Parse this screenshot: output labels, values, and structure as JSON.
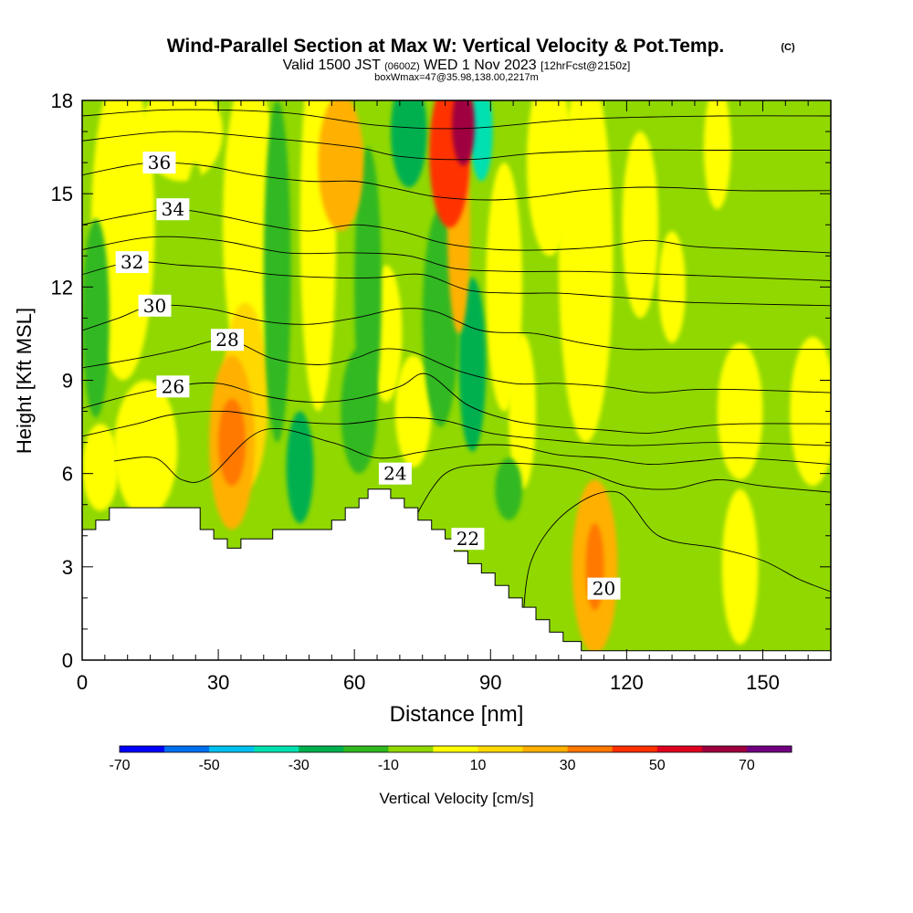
{
  "header": {
    "title": "Wind-Parallel Section at Max W: Vertical Velocity & Pot.Temp.",
    "copyright": "(C)",
    "valid_prefix": "Valid 1500 JST",
    "valid_utc": "(0600Z)",
    "valid_date": "WED 1 Nov 2023",
    "forecast": "[12hrFcst@2150z]",
    "box_info": "boxWmax=47@35.98,138.00,2217m"
  },
  "chart_data": {
    "type": "heatmap",
    "xlabel": "Distance [nm]",
    "ylabel": "Height [Kft MSL]",
    "xlim": [
      0,
      165
    ],
    "ylim": [
      0,
      18
    ],
    "xticks": [
      0,
      30,
      60,
      90,
      120,
      150
    ],
    "yticks": [
      0,
      3,
      6,
      9,
      12,
      15,
      18
    ],
    "colorbar": {
      "label": "Vertical Velocity [cm/s]",
      "range": [
        -70,
        80
      ],
      "step": 10,
      "tick_values": [
        -70,
        -50,
        -30,
        -10,
        10,
        30,
        50,
        70
      ],
      "colors": [
        "#0000ff",
        "#0070f0",
        "#00c0f0",
        "#00e0b0",
        "#00b050",
        "#30b820",
        "#90d800",
        "#ffff00",
        "#ffd800",
        "#ffb000",
        "#ff7800",
        "#ff3000",
        "#e00020",
        "#a00040",
        "#700080"
      ]
    },
    "terrain_kft": [
      [
        0,
        4.2
      ],
      [
        3,
        4.2
      ],
      [
        3,
        4.5
      ],
      [
        6,
        4.5
      ],
      [
        6,
        4.9
      ],
      [
        26,
        4.9
      ],
      [
        26,
        4.2
      ],
      [
        29,
        4.2
      ],
      [
        29,
        3.9
      ],
      [
        32,
        3.9
      ],
      [
        32,
        3.6
      ],
      [
        35,
        3.6
      ],
      [
        35,
        3.9
      ],
      [
        42,
        3.9
      ],
      [
        42,
        4.2
      ],
      [
        55,
        4.2
      ],
      [
        55,
        4.5
      ],
      [
        58,
        4.5
      ],
      [
        58,
        4.9
      ],
      [
        61,
        4.9
      ],
      [
        61,
        5.2
      ],
      [
        63,
        5.2
      ],
      [
        63,
        5.5
      ],
      [
        68,
        5.5
      ],
      [
        68,
        5.2
      ],
      [
        71,
        5.2
      ],
      [
        71,
        4.9
      ],
      [
        74,
        4.9
      ],
      [
        74,
        4.5
      ],
      [
        77,
        4.5
      ],
      [
        77,
        4.2
      ],
      [
        80,
        4.2
      ],
      [
        80,
        3.9
      ],
      [
        82,
        3.9
      ],
      [
        82,
        3.5
      ],
      [
        85,
        3.5
      ],
      [
        85,
        3.1
      ],
      [
        88,
        3.1
      ],
      [
        88,
        2.8
      ],
      [
        91,
        2.8
      ],
      [
        91,
        2.4
      ],
      [
        94,
        2.4
      ],
      [
        94,
        2.0
      ],
      [
        97,
        2.0
      ],
      [
        97,
        1.7
      ],
      [
        100,
        1.7
      ],
      [
        100,
        1.3
      ],
      [
        103,
        1.3
      ],
      [
        103,
        0.9
      ],
      [
        106,
        0.9
      ],
      [
        106,
        0.6
      ],
      [
        110,
        0.6
      ],
      [
        110,
        0.3
      ],
      [
        127,
        0.3
      ],
      [
        165,
        0.3
      ]
    ],
    "wind_cells": [
      {
        "x": 3,
        "y": 11,
        "rx": 3,
        "ry": 3.2,
        "w": -12
      },
      {
        "x": 4,
        "y": 6.2,
        "rx": 4,
        "ry": 1.4,
        "w": 5
      },
      {
        "x": 9,
        "y": 14,
        "rx": 7,
        "ry": 5,
        "w": 8
      },
      {
        "x": 14,
        "y": 6.8,
        "rx": 7,
        "ry": 2.2,
        "w": 8
      },
      {
        "x": 22,
        "y": 17,
        "rx": 9,
        "ry": 1.6,
        "w": 5
      },
      {
        "x": 25,
        "y": 12,
        "rx": 3,
        "ry": 4,
        "w": -8
      },
      {
        "x": 33,
        "y": 7,
        "rx": 5,
        "ry": 2.8,
        "w": 24
      },
      {
        "x": 33,
        "y": 7,
        "rx": 3,
        "ry": 1.4,
        "w": 30
      },
      {
        "x": 36,
        "y": 8.5,
        "rx": 5,
        "ry": 3,
        "w": 12
      },
      {
        "x": 37,
        "y": 14,
        "rx": 6,
        "ry": 5,
        "w": 8
      },
      {
        "x": 43,
        "y": 12.5,
        "rx": 3,
        "ry": 5.5,
        "w": -12
      },
      {
        "x": 48,
        "y": 6.2,
        "rx": 3,
        "ry": 1.8,
        "w": -22
      },
      {
        "x": 52,
        "y": 14,
        "rx": 4,
        "ry": 6,
        "w": 5
      },
      {
        "x": 57,
        "y": 16,
        "rx": 5,
        "ry": 2.2,
        "w": 20
      },
      {
        "x": 63,
        "y": 12,
        "rx": 3,
        "ry": 4.5,
        "w": -15
      },
      {
        "x": 61,
        "y": 8,
        "rx": 4,
        "ry": 2,
        "w": -12
      },
      {
        "x": 67,
        "y": 10.5,
        "rx": 3.5,
        "ry": 2.2,
        "w": 8
      },
      {
        "x": 72,
        "y": 17,
        "rx": 4,
        "ry": 1.8,
        "w": -22
      },
      {
        "x": 73,
        "y": 8,
        "rx": 4,
        "ry": 1.8,
        "w": 5
      },
      {
        "x": 79,
        "y": 11,
        "rx": 4,
        "ry": 3.5,
        "w": -18
      },
      {
        "x": 81,
        "y": 16.3,
        "rx": 4.5,
        "ry": 2.4,
        "w": 40
      },
      {
        "x": 83,
        "y": 14,
        "rx": 2.5,
        "ry": 3.5,
        "w": 28
      },
      {
        "x": 84,
        "y": 17.2,
        "rx": 2.5,
        "ry": 1.3,
        "w": 62
      },
      {
        "x": 86,
        "y": 9.5,
        "rx": 3,
        "ry": 2.8,
        "w": -25
      },
      {
        "x": 88,
        "y": 17,
        "rx": 2.5,
        "ry": 1.6,
        "w": -40
      },
      {
        "x": 93,
        "y": 12,
        "rx": 4,
        "ry": 4,
        "w": 8
      },
      {
        "x": 97,
        "y": 8,
        "rx": 3,
        "ry": 2.5,
        "w": 5
      },
      {
        "x": 94,
        "y": 5.5,
        "rx": 3,
        "ry": 1,
        "w": -12
      },
      {
        "x": 103,
        "y": 16,
        "rx": 5,
        "ry": 3,
        "w": 5
      },
      {
        "x": 111,
        "y": 13,
        "rx": 6,
        "ry": 6,
        "w": 8
      },
      {
        "x": 113,
        "y": 3,
        "rx": 5,
        "ry": 2.8,
        "w": 24
      },
      {
        "x": 113,
        "y": 3,
        "rx": 2,
        "ry": 1.4,
        "w": 30
      },
      {
        "x": 123,
        "y": 14,
        "rx": 4,
        "ry": 3,
        "w": 5
      },
      {
        "x": 130,
        "y": 12,
        "rx": 3,
        "ry": 1.8,
        "w": 5
      },
      {
        "x": 140,
        "y": 16.5,
        "rx": 3,
        "ry": 2,
        "w": 5
      },
      {
        "x": 145,
        "y": 8,
        "rx": 5,
        "ry": 2.2,
        "w": 5
      },
      {
        "x": 161,
        "y": 8,
        "rx": 5,
        "ry": 2.4,
        "w": 5
      },
      {
        "x": 145,
        "y": 3,
        "rx": 4,
        "ry": 2.5,
        "w": 5
      }
    ],
    "isentropes": [
      {
        "theta": 20,
        "label_at": [
          115,
          2.3
        ],
        "points": [
          [
            97,
            0.9
          ],
          [
            99,
            3.2
          ],
          [
            107,
            4.8
          ],
          [
            118,
            5.4
          ],
          [
            127,
            4.0
          ],
          [
            140,
            3.6
          ],
          [
            150,
            3.2
          ],
          [
            158,
            2.6
          ],
          [
            165,
            2.2
          ]
        ]
      },
      {
        "theta": 22,
        "label_at": [
          85,
          3.9
        ],
        "points": [
          [
            73,
            4.5
          ],
          [
            80,
            6.0
          ],
          [
            90,
            6.3
          ],
          [
            100,
            6.3
          ],
          [
            110,
            6.1
          ],
          [
            120,
            5.6
          ],
          [
            130,
            5.5
          ],
          [
            140,
            5.8
          ],
          [
            150,
            5.6
          ],
          [
            165,
            5.4
          ]
        ]
      },
      {
        "theta": 24,
        "label_at": [
          69,
          6.0
        ],
        "points": [
          [
            7,
            6.4
          ],
          [
            16,
            6.5
          ],
          [
            22,
            5.8
          ],
          [
            28,
            5.9
          ],
          [
            40,
            7.4
          ],
          [
            55,
            7.0
          ],
          [
            65,
            6.5
          ],
          [
            75,
            6.7
          ],
          [
            85,
            6.9
          ],
          [
            95,
            6.9
          ],
          [
            105,
            6.6
          ],
          [
            115,
            6.5
          ],
          [
            125,
            6.3
          ],
          [
            135,
            6.4
          ],
          [
            145,
            6.5
          ],
          [
            165,
            6.3
          ]
        ]
      },
      {
        "theta": 26,
        "label_at": [
          20,
          8.8
        ],
        "points": [
          [
            0,
            8.1
          ],
          [
            10,
            8.5
          ],
          [
            20,
            8.8
          ],
          [
            30,
            8.9
          ],
          [
            40,
            8.5
          ],
          [
            50,
            8.3
          ],
          [
            60,
            8.4
          ],
          [
            70,
            8.8
          ],
          [
            76,
            9.2
          ],
          [
            85,
            8.2
          ],
          [
            95,
            7.7
          ],
          [
            105,
            7.5
          ],
          [
            115,
            7.4
          ],
          [
            125,
            7.3
          ],
          [
            135,
            7.5
          ],
          [
            145,
            7.6
          ],
          [
            165,
            7.6
          ]
        ]
      },
      {
        "theta": 28,
        "label_at": [
          32,
          10.3
        ],
        "points": [
          [
            0,
            9.4
          ],
          [
            12,
            9.7
          ],
          [
            22,
            10.0
          ],
          [
            32,
            10.3
          ],
          [
            42,
            9.7
          ],
          [
            52,
            9.5
          ],
          [
            60,
            9.7
          ],
          [
            66,
            10.0
          ],
          [
            73,
            9.9
          ],
          [
            83,
            9.3
          ],
          [
            95,
            8.9
          ],
          [
            105,
            8.9
          ],
          [
            115,
            8.8
          ],
          [
            125,
            8.6
          ],
          [
            135,
            8.7
          ],
          [
            145,
            8.7
          ],
          [
            165,
            8.6
          ]
        ]
      },
      {
        "theta": 30,
        "label_at": [
          16,
          11.4
        ],
        "points": [
          [
            0,
            10.6
          ],
          [
            8,
            11.0
          ],
          [
            16,
            11.4
          ],
          [
            28,
            11.3
          ],
          [
            40,
            10.9
          ],
          [
            50,
            10.8
          ],
          [
            60,
            11.0
          ],
          [
            70,
            11.3
          ],
          [
            78,
            11.2
          ],
          [
            88,
            10.6
          ],
          [
            100,
            10.5
          ],
          [
            110,
            10.2
          ],
          [
            120,
            10.0
          ],
          [
            130,
            10.0
          ],
          [
            145,
            10.0
          ],
          [
            165,
            10.0
          ]
        ]
      },
      {
        "theta": 32,
        "label_at": [
          11,
          12.8
        ],
        "points": [
          [
            0,
            12.4
          ],
          [
            11,
            12.8
          ],
          [
            22,
            12.7
          ],
          [
            32,
            12.6
          ],
          [
            42,
            12.4
          ],
          [
            55,
            12.3
          ],
          [
            65,
            12.3
          ],
          [
            75,
            12.4
          ],
          [
            85,
            11.9
          ],
          [
            95,
            11.8
          ],
          [
            105,
            11.8
          ],
          [
            115,
            11.7
          ],
          [
            125,
            11.6
          ],
          [
            135,
            11.5
          ],
          [
            165,
            11.4
          ]
        ]
      },
      {
        "theta": 34,
        "label_at": [
          20,
          14.5
        ],
        "points": [
          [
            0,
            14.0
          ],
          [
            10,
            14.3
          ],
          [
            20,
            14.5
          ],
          [
            30,
            14.3
          ],
          [
            40,
            14.0
          ],
          [
            50,
            13.8
          ],
          [
            60,
            14.0
          ],
          [
            70,
            13.8
          ],
          [
            80,
            13.4
          ],
          [
            92,
            13.2
          ],
          [
            104,
            13.2
          ],
          [
            115,
            13.3
          ],
          [
            125,
            13.5
          ],
          [
            135,
            13.3
          ],
          [
            150,
            13.2
          ],
          [
            165,
            13.1
          ]
        ]
      },
      {
        "theta": 36,
        "label_at": [
          17,
          16.0
        ],
        "points": [
          [
            0,
            15.6
          ],
          [
            10,
            15.9
          ],
          [
            17,
            16.0
          ],
          [
            27,
            15.9
          ],
          [
            38,
            15.6
          ],
          [
            50,
            15.4
          ],
          [
            60,
            15.4
          ],
          [
            68,
            15.2
          ],
          [
            78,
            14.9
          ],
          [
            90,
            14.8
          ],
          [
            100,
            14.9
          ],
          [
            110,
            15.1
          ],
          [
            120,
            15.2
          ],
          [
            130,
            15.2
          ],
          [
            145,
            15.1
          ],
          [
            165,
            15.1
          ]
        ]
      },
      {
        "points": [
          [
            0,
            16.7
          ],
          [
            20,
            17.0
          ],
          [
            40,
            16.8
          ],
          [
            60,
            16.5
          ],
          [
            70,
            16.2
          ],
          [
            85,
            16.1
          ],
          [
            100,
            16.3
          ],
          [
            120,
            16.4
          ],
          [
            140,
            16.4
          ],
          [
            165,
            16.4
          ]
        ]
      },
      {
        "points": [
          [
            0,
            17.5
          ],
          [
            20,
            17.7
          ],
          [
            45,
            17.6
          ],
          [
            65,
            17.2
          ],
          [
            85,
            17.1
          ],
          [
            110,
            17.4
          ],
          [
            140,
            17.5
          ],
          [
            165,
            17.5
          ]
        ]
      },
      {
        "points": [
          [
            0,
            7.2
          ],
          [
            12,
            7.6
          ],
          [
            20,
            7.9
          ],
          [
            32,
            8.0
          ],
          [
            45,
            7.7
          ],
          [
            58,
            7.6
          ],
          [
            70,
            7.8
          ],
          [
            80,
            7.7
          ],
          [
            90,
            7.3
          ],
          [
            102,
            7.1
          ],
          [
            120,
            6.9
          ],
          [
            140,
            7.0
          ],
          [
            165,
            6.9
          ]
        ]
      },
      {
        "points": [
          [
            0,
            13.2
          ],
          [
            15,
            13.6
          ],
          [
            30,
            13.5
          ],
          [
            45,
            13.1
          ],
          [
            60,
            13.1
          ],
          [
            72,
            13.0
          ],
          [
            82,
            12.6
          ],
          [
            95,
            12.5
          ],
          [
            110,
            12.5
          ],
          [
            130,
            12.4
          ],
          [
            165,
            12.2
          ]
        ]
      }
    ]
  }
}
